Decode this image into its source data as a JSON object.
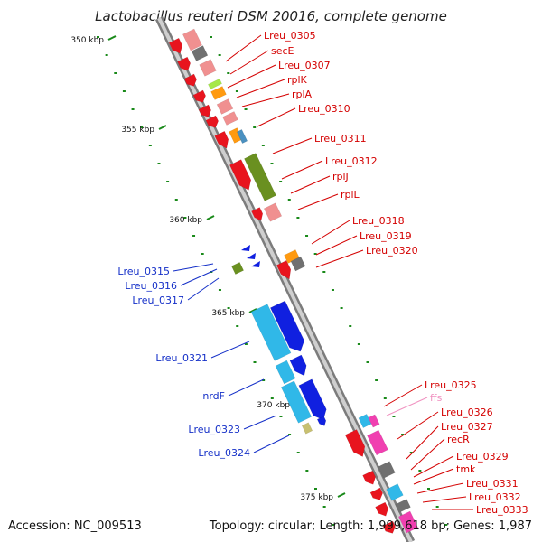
{
  "title": "Lactobacillus reuteri DSM 20016, complete genome",
  "accession": "Accession: NC_009513",
  "topology": "Topology: circular; Length: 1,999,618 bp; Genes: 1,987",
  "ticks": [
    {
      "label": "350 kbp"
    },
    {
      "label": "355 kbp"
    },
    {
      "label": "360 kbp"
    },
    {
      "label": "365 kbp"
    },
    {
      "label": "370 kbp"
    },
    {
      "label": "375 kbp"
    }
  ],
  "features_right": [
    {
      "label": "Lreu_0305",
      "color": "#d40000"
    },
    {
      "label": "secE",
      "color": "#d40000"
    },
    {
      "label": "Lreu_0307",
      "color": "#d40000"
    },
    {
      "label": "rplK",
      "color": "#d40000"
    },
    {
      "label": "rplA",
      "color": "#d40000"
    },
    {
      "label": "Lreu_0310",
      "color": "#d40000"
    },
    {
      "label": "Lreu_0311",
      "color": "#d40000"
    },
    {
      "label": "Lreu_0312",
      "color": "#d40000"
    },
    {
      "label": "rplJ",
      "color": "#d40000"
    },
    {
      "label": "rplL",
      "color": "#d40000"
    },
    {
      "label": "Lreu_0318",
      "color": "#d40000"
    },
    {
      "label": "Lreu_0319",
      "color": "#d40000"
    },
    {
      "label": "Lreu_0320",
      "color": "#d40000"
    },
    {
      "label": "Lreu_0325",
      "color": "#d40000"
    },
    {
      "label": "ffs",
      "color": "#f090c0"
    },
    {
      "label": "Lreu_0326",
      "color": "#d40000"
    },
    {
      "label": "Lreu_0327",
      "color": "#d40000"
    },
    {
      "label": "recR",
      "color": "#d40000"
    },
    {
      "label": "Lreu_0329",
      "color": "#d40000"
    },
    {
      "label": "tmk",
      "color": "#d40000"
    },
    {
      "label": "Lreu_0331",
      "color": "#d40000"
    },
    {
      "label": "Lreu_0332",
      "color": "#d40000"
    },
    {
      "label": "Lreu_0333",
      "color": "#d40000"
    }
  ],
  "features_left": [
    {
      "label": "Lreu_0315",
      "color": "#1530c8"
    },
    {
      "label": "Lreu_0316",
      "color": "#1530c8"
    },
    {
      "label": "Lreu_0317",
      "color": "#1530c8"
    },
    {
      "label": "Lreu_0321",
      "color": "#1530c8"
    },
    {
      "label": "nrdF",
      "color": "#1530c8"
    },
    {
      "label": "Lreu_0323",
      "color": "#1530c8"
    },
    {
      "label": "Lreu_0324",
      "color": "#1530c8"
    }
  ],
  "colors": {
    "backbone": "#8c8c8c",
    "cds_forward": "#e8141e",
    "cds_reverse": "#1020e0",
    "gene_pink": "#f09090",
    "gene_cyan": "#30b8e8",
    "gene_olive": "#6a9020",
    "gene_orange": "#ff9a10",
    "gene_magenta": "#f040b0",
    "gene_gray": "#707070",
    "tick_dots": "#1a8a1a"
  }
}
